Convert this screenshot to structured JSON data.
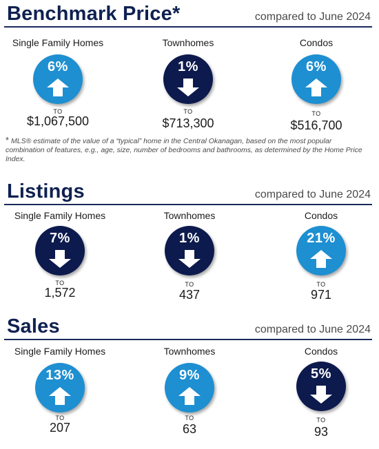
{
  "benchmark": {
    "title": "Benchmark Price*",
    "subtitle": "compared to June 2024",
    "items": [
      {
        "label": "Single Family Homes",
        "pct": "6%",
        "direction": "up",
        "to": "TO",
        "value": "$1,067,500"
      },
      {
        "label": "Townhomes",
        "pct": "1%",
        "direction": "down",
        "to": "TO",
        "value": "$713,300"
      },
      {
        "label": "Condos",
        "pct": "6%",
        "direction": "up",
        "to": "TO",
        "value": "$516,700"
      }
    ],
    "footnote_star": "*",
    "footnote": "MLS® estimate of the value of a “typical” home in the Central Okanagan, based on the most popular combination of features, e.g., age, size, number of bedrooms and bathrooms, as determined by the Home Price Index."
  },
  "listings": {
    "title": "Listings",
    "subtitle": "compared to June  2024",
    "items": [
      {
        "label": "Single Family Homes",
        "pct": "7%",
        "direction": "down",
        "to": "TO",
        "value": "1,572"
      },
      {
        "label": "Townhomes",
        "pct": "1%",
        "direction": "down",
        "to": "TO",
        "value": "437"
      },
      {
        "label": "Condos",
        "pct": "21%",
        "direction": "up",
        "to": "TO",
        "value": "971"
      }
    ]
  },
  "sales": {
    "title": "Sales",
    "subtitle": "compared to June 2024",
    "items": [
      {
        "label": "Single Family Homes",
        "pct": "13%",
        "direction": "up",
        "to": "TO",
        "value": "207"
      },
      {
        "label": "Townhomes",
        "pct": "9%",
        "direction": "up",
        "to": "TO",
        "value": "63"
      },
      {
        "label": "Condos",
        "pct": "5%",
        "direction": "down",
        "to": "TO",
        "value": "93"
      }
    ]
  },
  "colors": {
    "up": "#1e8fd1",
    "down": "#0d1a4d",
    "heading": "#0f2151"
  },
  "icons": {
    "up": "arrow-up-icon",
    "down": "arrow-down-icon"
  }
}
